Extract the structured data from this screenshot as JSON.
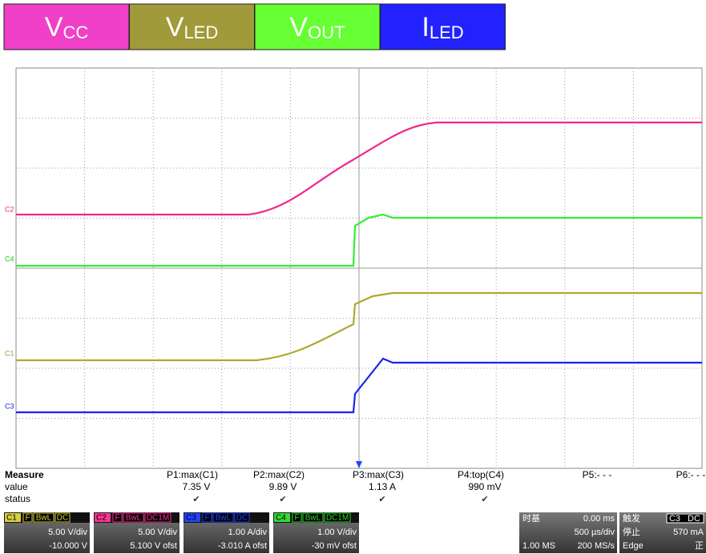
{
  "legend": [
    {
      "main": "V",
      "sub": "CC"
    },
    {
      "main": "V",
      "sub": "LED"
    },
    {
      "main": "V",
      "sub": "OUT"
    },
    {
      "main": "I",
      "sub": "LED"
    }
  ],
  "channel_labels": [
    "C2",
    "C4",
    "C1",
    "C3"
  ],
  "measure": {
    "title": "Measure",
    "row_labels": [
      "value",
      "status"
    ],
    "columns": [
      {
        "name": "P1:max(C1)",
        "value": "7.35 V",
        "status": "✔"
      },
      {
        "name": "P2:max(C2)",
        "value": "9.89 V",
        "status": "✔"
      },
      {
        "name": "P3:max(C3)",
        "value": "1.13 A",
        "status": "✔"
      },
      {
        "name": "P4:top(C4)",
        "value": "990 mV",
        "status": "✔"
      },
      {
        "name": "P5:- - -"
      },
      {
        "name": "P6:- - -"
      }
    ]
  },
  "channels": [
    {
      "id": "C1",
      "tags": [
        "F",
        "BwL",
        "DC"
      ],
      "scale": "5.00 V/div",
      "offset": "-10.000 V"
    },
    {
      "id": "C2",
      "tags": [
        "F",
        "BwL",
        "DC1M"
      ],
      "scale": "5.00 V/div",
      "offset": "5.100 V ofst"
    },
    {
      "id": "C3",
      "tags": [
        "F",
        "BwL",
        "DC"
      ],
      "scale": "1.00 A/div",
      "offset": "-3.010 A ofst"
    },
    {
      "id": "C4",
      "tags": [
        "F",
        "BwL",
        "DC1M"
      ],
      "scale": "1.00 V/div",
      "offset": "-30 mV ofst"
    }
  ],
  "timebase": {
    "title": "时基",
    "delay": "0.00 ms",
    "scale": "500 µs/div",
    "points": "1.00 MS",
    "rate": "200 MS/s"
  },
  "trigger": {
    "title": "触发",
    "source": "C3",
    "coupling": "DC",
    "mode": "停止",
    "level": "570 mA",
    "type": "Edge",
    "slope": "正"
  }
}
